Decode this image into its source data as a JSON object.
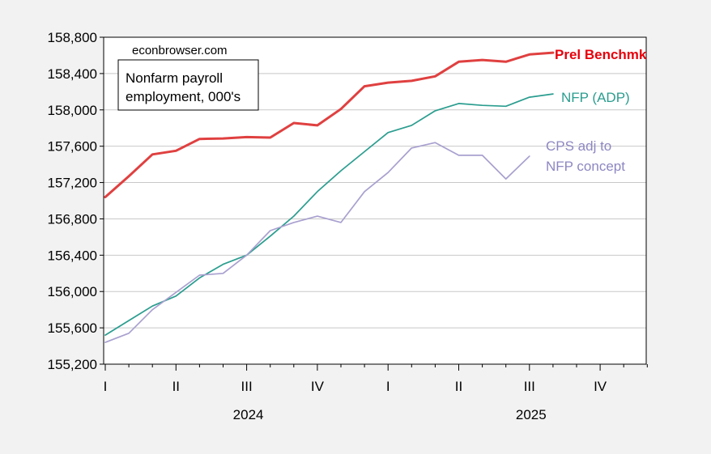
{
  "chart_data": {
    "type": "line",
    "watermark": "econbrowser.com",
    "title_box": [
      "Nonfarm payroll",
      "employment, 000's"
    ],
    "ylim": [
      155200,
      158800
    ],
    "yticks": [
      155200,
      155600,
      156000,
      156400,
      156800,
      157200,
      157600,
      158000,
      158400,
      158800
    ],
    "ytick_labels": [
      "155,200",
      "155,600",
      "156,000",
      "156,400",
      "156,800",
      "157,200",
      "157,600",
      "158,000",
      "158,400",
      "158,800"
    ],
    "x_range_months": [
      "2024-01",
      "2025-12"
    ],
    "quarter_ticks": [
      {
        "label": "I",
        "month": 0
      },
      {
        "label": "II",
        "month": 3
      },
      {
        "label": "III",
        "month": 6
      },
      {
        "label": "IV",
        "month": 9
      },
      {
        "label": "I",
        "month": 12
      },
      {
        "label": "II",
        "month": 15
      },
      {
        "label": "III",
        "month": 18
      },
      {
        "label": "IV",
        "month": 21
      }
    ],
    "years": [
      {
        "label": "2024",
        "center_month": 6
      },
      {
        "label": "2025",
        "center_month": 18
      }
    ],
    "grid": true,
    "series": [
      {
        "name": "Prel Benchmk",
        "color": "#e04040",
        "label_color": "#e8000b",
        "bold": true,
        "x": [
          "2024-01",
          "2024-02",
          "2024-03",
          "2024-04",
          "2024-05",
          "2024-06",
          "2024-07",
          "2024-08",
          "2024-09",
          "2024-10",
          "2024-11",
          "2024-12",
          "2025-01",
          "2025-02",
          "2025-03",
          "2025-04",
          "2025-05",
          "2025-06",
          "2025-07",
          "2025-08"
        ],
        "values": [
          157040,
          157270,
          157510,
          157550,
          157680,
          157685,
          157700,
          157695,
          157855,
          157830,
          158010,
          158260,
          158300,
          158320,
          158370,
          158530,
          158550,
          158530,
          158610,
          158630
        ]
      },
      {
        "name": "NFP (ADP)",
        "color": "#2a9d8f",
        "label_color": "#2a9d8f",
        "bold": false,
        "x": [
          "2024-01",
          "2024-02",
          "2024-03",
          "2024-04",
          "2024-05",
          "2024-06",
          "2024-07",
          "2024-08",
          "2024-09",
          "2024-10",
          "2024-11",
          "2024-12",
          "2025-01",
          "2025-02",
          "2025-03",
          "2025-04",
          "2025-05",
          "2025-06",
          "2025-07",
          "2025-08"
        ],
        "values": [
          155520,
          155680,
          155840,
          155950,
          156150,
          156300,
          156400,
          156610,
          156830,
          157100,
          157330,
          157540,
          157750,
          157830,
          157990,
          158070,
          158050,
          158040,
          158140,
          158175
        ]
      },
      {
        "name": "CPS adj to NFP concept",
        "label_lines": [
          "CPS adj to",
          "NFP concept"
        ],
        "color": "#a9a0cf",
        "label_color": "#8d87c2",
        "bold": false,
        "x": [
          "2024-01",
          "2024-02",
          "2024-03",
          "2024-04",
          "2024-05",
          "2024-06",
          "2024-07",
          "2024-08",
          "2024-09",
          "2024-10",
          "2024-11",
          "2024-12",
          "2025-01",
          "2025-02",
          "2025-03",
          "2025-04",
          "2025-05",
          "2025-06",
          "2025-07"
        ],
        "values": [
          155440,
          155540,
          155800,
          155990,
          156180,
          156200,
          156400,
          156670,
          156760,
          156830,
          156760,
          157100,
          157310,
          157580,
          157640,
          157500,
          157500,
          157240,
          157490
        ]
      }
    ]
  }
}
